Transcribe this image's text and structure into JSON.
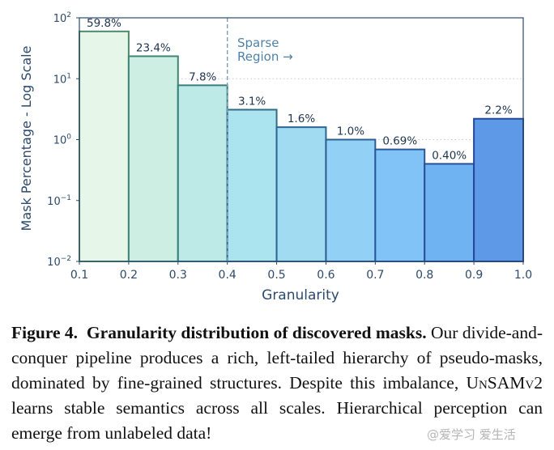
{
  "chart_data": {
    "type": "bar",
    "xlabel": "Granularity",
    "ylabel": "Mask Percentage - Log Scale",
    "yscale": "log",
    "ylim": [
      0.01,
      100
    ],
    "xlim": [
      0.1,
      1.0
    ],
    "x_ticks": [
      "0.1",
      "0.2",
      "0.3",
      "0.4",
      "0.5",
      "0.6",
      "0.7",
      "0.8",
      "0.9",
      "1.0"
    ],
    "y_ticks": [
      {
        "base": "10",
        "exp": "2",
        "value": 100
      },
      {
        "base": "10",
        "exp": "1",
        "value": 10
      },
      {
        "base": "10",
        "exp": "0",
        "value": 1
      },
      {
        "base": "10",
        "exp": "−1",
        "value": 0.1
      },
      {
        "base": "10",
        "exp": "−2",
        "value": 0.01
      }
    ],
    "bins": [
      {
        "x0": 0.1,
        "x1": 0.2,
        "value": 59.8,
        "label": "59.8%",
        "fill": "#e6f6e9",
        "edge": "#4e8a6a"
      },
      {
        "x0": 0.2,
        "x1": 0.3,
        "value": 23.4,
        "label": "23.4%",
        "fill": "#cdeee3",
        "edge": "#3f8575"
      },
      {
        "x0": 0.3,
        "x1": 0.4,
        "value": 7.8,
        "label": "7.8%",
        "fill": "#bdeae6",
        "edge": "#367f7d"
      },
      {
        "x0": 0.4,
        "x1": 0.5,
        "value": 3.1,
        "label": "3.1%",
        "fill": "#abe3ee",
        "edge": "#2f6c86"
      },
      {
        "x0": 0.5,
        "x1": 0.6,
        "value": 1.6,
        "label": "1.6%",
        "fill": "#a0dbf2",
        "edge": "#2c6690"
      },
      {
        "x0": 0.6,
        "x1": 0.7,
        "value": 1.0,
        "label": "1.0%",
        "fill": "#92d1f5",
        "edge": "#2b5f93"
      },
      {
        "x0": 0.7,
        "x1": 0.8,
        "value": 0.69,
        "label": "0.69%",
        "fill": "#81c3f6",
        "edge": "#2a5896"
      },
      {
        "x0": 0.8,
        "x1": 0.9,
        "value": 0.4,
        "label": "0.40%",
        "fill": "#70b3f3",
        "edge": "#284f98"
      },
      {
        "x0": 0.9,
        "x1": 1.0,
        "value": 2.2,
        "label": "2.2%",
        "fill": "#5d99e6",
        "edge": "#26479a"
      }
    ],
    "annotation": {
      "text_line1": "Sparse",
      "text_line2": "Region →",
      "x": 0.4
    },
    "grid": "horizontal dotted",
    "colors": {
      "axis_text": "#2d4a6b",
      "annotation": "#4f82a8",
      "divider": "#7a9fbd"
    }
  },
  "caption": {
    "figure_label": "Figure 4.",
    "title": "Granularity distribution of discovered masks.",
    "body_before_name": " Our divide-and-conquer pipeline produces a rich, left-tailed hierarchy of pseudo-masks, dominated by fine-grained structures. Despite this imbalance, ",
    "method_name": "UnSAMv2",
    "body_after_name": " learns stable semantics across all scales. Hierarchical perception can emerge from unlabeled data!"
  },
  "watermark": "@爱学习 爱生活"
}
